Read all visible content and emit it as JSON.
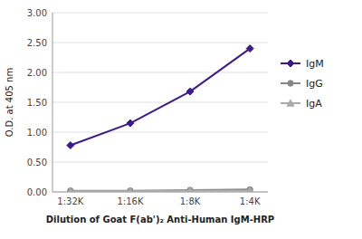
{
  "chart_data": {
    "type": "line",
    "categories": [
      "1:32K",
      "1:16K",
      "1:8K",
      "1:4K"
    ],
    "series": [
      {
        "name": "IgM",
        "color": "#3d1a8c",
        "marker": "diamond",
        "values": [
          0.78,
          1.15,
          1.68,
          2.4
        ]
      },
      {
        "name": "IgG",
        "color": "#888888",
        "marker": "circle",
        "values": [
          0.02,
          0.02,
          0.03,
          0.04
        ]
      },
      {
        "name": "IgA",
        "color": "#aaaaaa",
        "marker": "triangle",
        "values": [
          0.01,
          0.01,
          0.02,
          0.02
        ]
      }
    ],
    "x_label": "Dilution of Goat F(ab')₂ Anti-Human IgM-HRP",
    "y_label": "O.D. at 405 nm",
    "ylim": [
      0.0,
      3.0
    ],
    "yticks": [
      {
        "value": 0.0,
        "label": "0.00"
      },
      {
        "value": 0.5,
        "label": "0.50"
      },
      {
        "value": 1.0,
        "label": "1.00"
      },
      {
        "value": 1.5,
        "label": "1.50"
      },
      {
        "value": 2.0,
        "label": "2.00"
      },
      {
        "value": 2.5,
        "label": "2.50"
      },
      {
        "value": 3.0,
        "label": "3.00"
      }
    ],
    "grid": true,
    "legend": "right"
  }
}
